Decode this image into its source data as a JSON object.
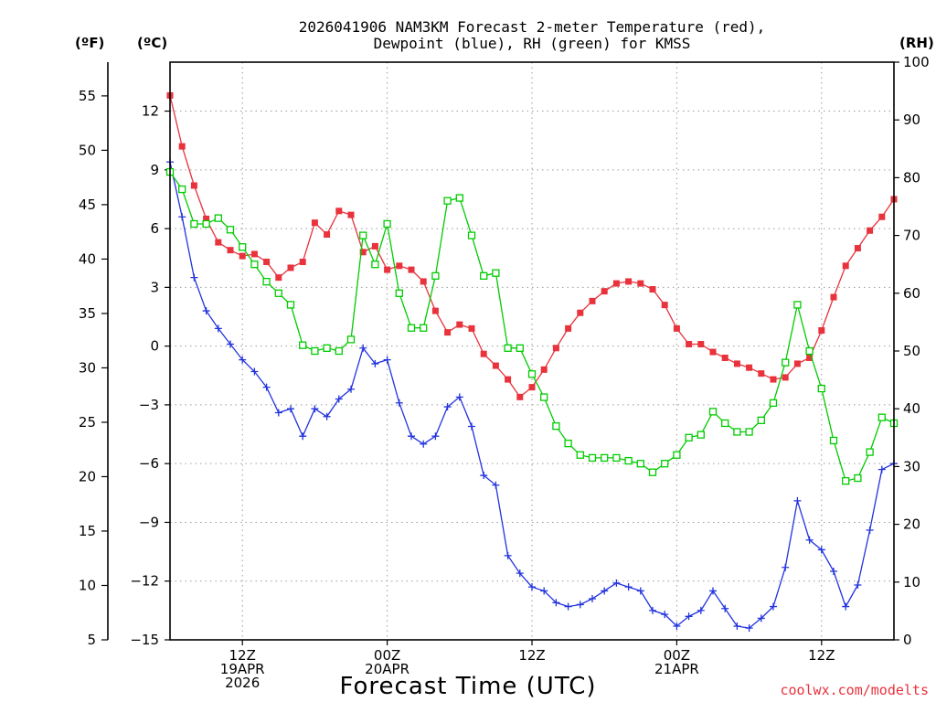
{
  "chart_data": {
    "type": "line",
    "title_line1": "2026041906 NAM3KM Forecast 2-meter Temperature (red),",
    "title_line2": "Dewpoint (blue), RH (green) for KMSS",
    "xlabel": "Forecast Time (UTC)",
    "credit": "coolwx.com/modelts",
    "units": {
      "fahrenheit": "(ºF)",
      "celsius": "(ºC)",
      "rh": "(RH)"
    },
    "x_range_hours": [
      7,
      67
    ],
    "y_range_celsius": [
      -15,
      14.5
    ],
    "y_range_rh": [
      0,
      100
    ],
    "celsius_ticks": [
      "12",
      "9",
      "6",
      "3",
      "0",
      "−3",
      "−6",
      "−9",
      "−12",
      "−15"
    ],
    "fahrenheit_ticks": [
      "55",
      "50",
      "45",
      "40",
      "35",
      "30",
      "25",
      "20",
      "15",
      "10",
      "5"
    ],
    "rh_ticks": [
      "100",
      "90",
      "80",
      "70",
      "60",
      "50",
      "40",
      "30",
      "20",
      "10",
      "0"
    ],
    "x_ticks": [
      {
        "hour": 13,
        "lines": [
          "12Z",
          "19APR",
          "2026"
        ]
      },
      {
        "hour": 25,
        "lines": [
          "00Z",
          "20APR"
        ]
      },
      {
        "hour": 37,
        "lines": [
          "12Z"
        ]
      },
      {
        "hour": 49,
        "lines": [
          "00Z",
          "21APR"
        ]
      },
      {
        "hour": 61,
        "lines": [
          "12Z"
        ]
      }
    ],
    "hours": [
      7,
      8,
      9,
      10,
      11,
      12,
      13,
      14,
      15,
      16,
      17,
      18,
      19,
      20,
      21,
      22,
      23,
      24,
      25,
      26,
      27,
      28,
      29,
      30,
      31,
      32,
      33,
      34,
      35,
      36,
      37,
      38,
      39,
      40,
      41,
      42,
      43,
      44,
      45,
      46,
      47,
      48,
      49,
      50,
      51,
      52,
      53,
      54,
      55,
      56,
      57,
      58,
      59,
      60,
      61,
      62,
      63,
      64,
      65,
      66,
      67
    ],
    "series": [
      {
        "name": "2-meter Temperature",
        "unit": "celsius",
        "color": "#e8323c",
        "marker": "filled-square",
        "values": [
          12.8,
          10.2,
          8.2,
          6.5,
          5.3,
          4.9,
          4.6,
          4.7,
          4.3,
          3.5,
          4.0,
          4.3,
          6.3,
          5.7,
          6.9,
          6.7,
          4.8,
          5.1,
          3.9,
          4.1,
          3.9,
          3.3,
          1.8,
          0.7,
          1.1,
          0.9,
          -0.4,
          -1.0,
          -1.7,
          -2.6,
          -2.1,
          -1.2,
          -0.1,
          0.9,
          1.7,
          2.3,
          2.8,
          3.2,
          3.3,
          3.2,
          2.9,
          2.1,
          0.9,
          0.1,
          0.1,
          -0.3,
          -0.6,
          -0.9,
          -1.1,
          -1.4,
          -1.7,
          -1.6,
          -0.9,
          -0.6,
          0.8,
          2.5,
          4.1,
          5.0,
          5.9,
          6.6,
          7.5
        ]
      },
      {
        "name": "Dewpoint",
        "unit": "celsius",
        "color": "#2233dd",
        "marker": "plus",
        "values": [
          9.4,
          6.6,
          3.5,
          1.8,
          0.9,
          0.1,
          -0.7,
          -1.3,
          -2.1,
          -3.4,
          -3.2,
          -4.6,
          -3.2,
          -3.6,
          -2.7,
          -2.2,
          -0.1,
          -0.9,
          -0.7,
          -2.9,
          -4.6,
          -5.0,
          -4.6,
          -3.1,
          -2.6,
          -4.1,
          -6.6,
          -7.1,
          -10.7,
          -11.6,
          -12.3,
          -12.5,
          -13.1,
          -13.3,
          -13.2,
          -12.9,
          -12.5,
          -12.1,
          -12.3,
          -12.5,
          -13.5,
          -13.7,
          -14.3,
          -13.8,
          -13.5,
          -12.5,
          -13.4,
          -14.3,
          -14.4,
          -13.9,
          -13.3,
          -11.3,
          -7.9,
          -9.9,
          -10.4,
          -11.5,
          -13.3,
          -12.2,
          -9.4,
          -6.3,
          -6.0
        ]
      },
      {
        "name": "RH",
        "unit": "percent",
        "color": "#00cc00",
        "marker": "open-square",
        "values": [
          81,
          78,
          72,
          72,
          73,
          71,
          68,
          65,
          62,
          60,
          58,
          51,
          50,
          50.5,
          50,
          52,
          70,
          65,
          72,
          60,
          54,
          54,
          63,
          76,
          76.5,
          70,
          63,
          63.5,
          50.5,
          50.5,
          46,
          42,
          37,
          34,
          32,
          31.5,
          31.5,
          31.5,
          31,
          30.5,
          29,
          30.5,
          32,
          35,
          35.5,
          39.5,
          37.5,
          36,
          36,
          38,
          41,
          48,
          58,
          50,
          43.5,
          34.5,
          27.5,
          28,
          32.5,
          38.5,
          37.5
        ]
      }
    ]
  }
}
